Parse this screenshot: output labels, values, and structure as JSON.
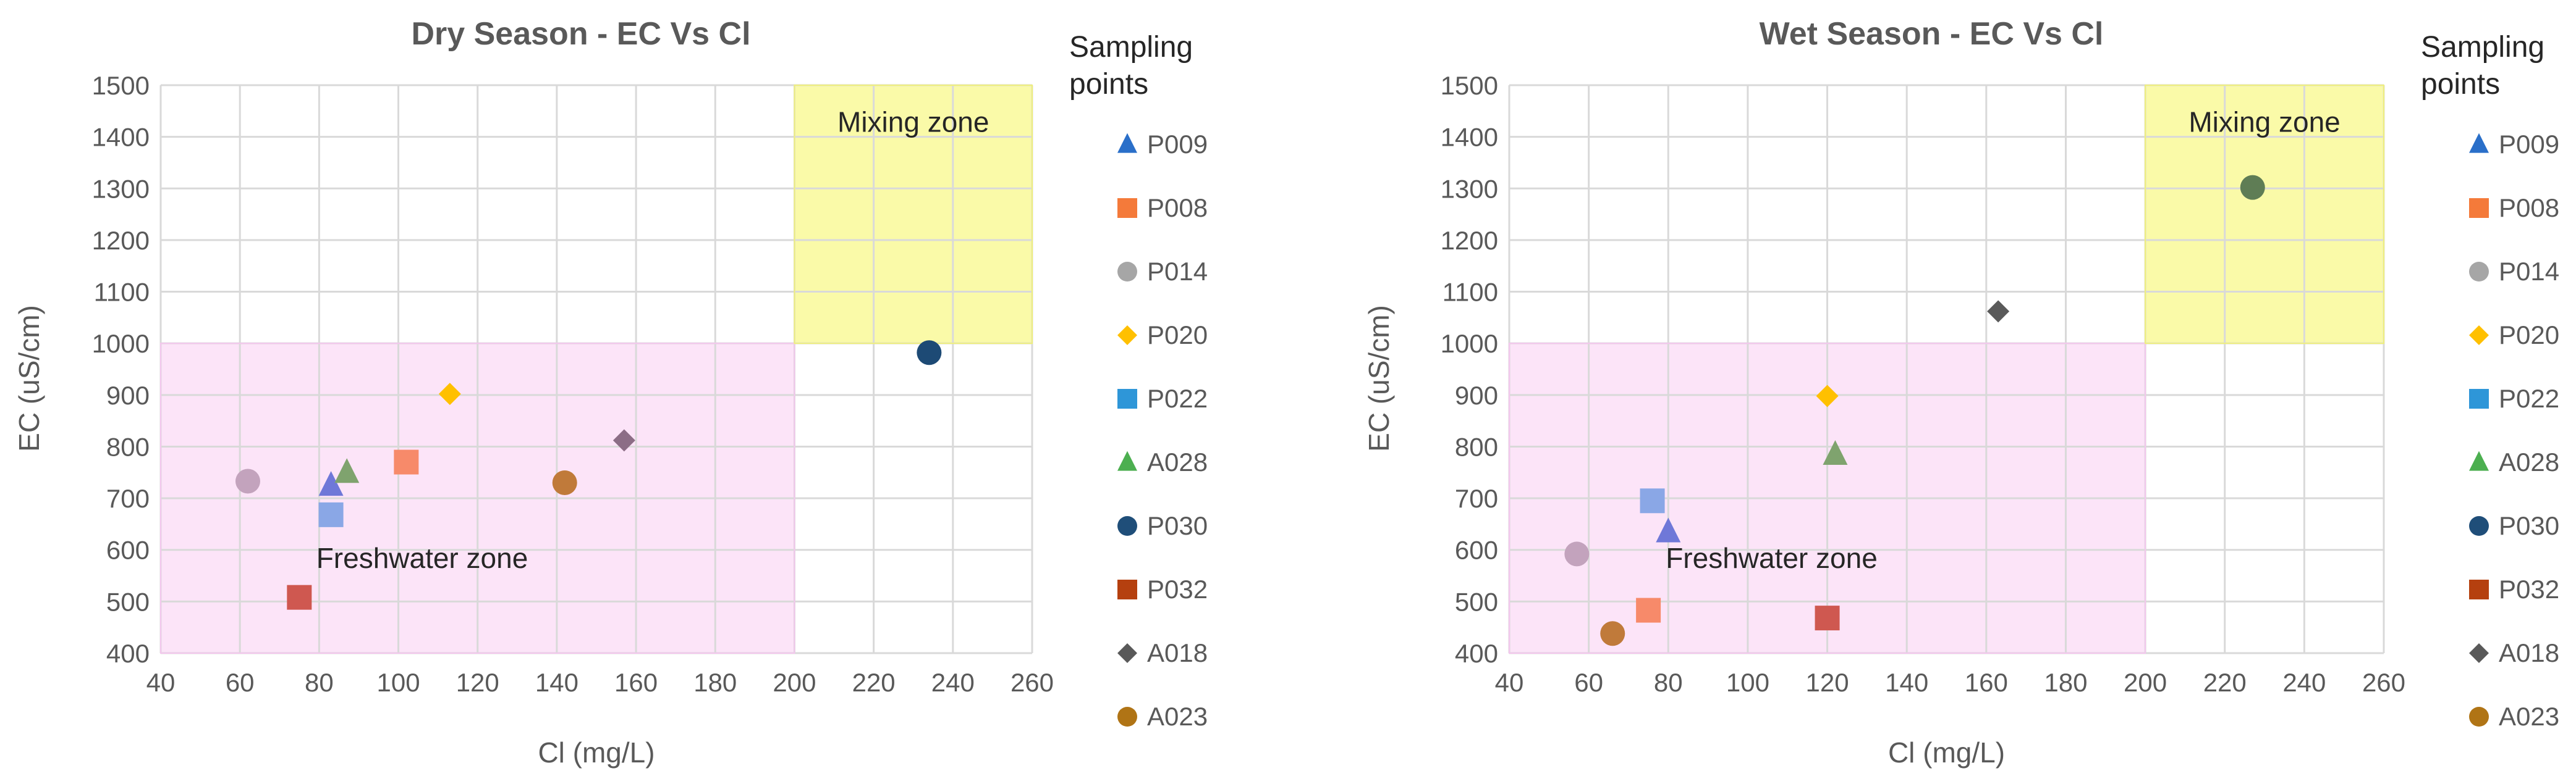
{
  "chart_data": [
    {
      "type": "scatter",
      "title": "Dry Season - EC Vs Cl",
      "xlabel": "Cl (mg/L)",
      "ylabel": "EC (uS/cm)",
      "xlim": [
        40,
        260
      ],
      "ylim": [
        400,
        1500
      ],
      "xticks": [
        40,
        60,
        80,
        100,
        120,
        140,
        160,
        180,
        200,
        220,
        240,
        260
      ],
      "yticks": [
        400,
        500,
        600,
        700,
        800,
        900,
        1000,
        1100,
        1200,
        1300,
        1400,
        1500
      ],
      "zones": [
        {
          "label": "Freshwater zone",
          "x_range": [
            40,
            200
          ],
          "y_range": [
            400,
            1000
          ],
          "color": "#fce4f8"
        },
        {
          "label": "Mixing zone",
          "x_range": [
            200,
            260
          ],
          "y_range": [
            1000,
            1500
          ],
          "color": "#fafaa8"
        }
      ],
      "legend_title": "Sampling points",
      "points": [
        {
          "name": "P009",
          "x": 83,
          "y": 725
        },
        {
          "name": "P008",
          "x": 102,
          "y": 770
        },
        {
          "name": "P014",
          "x": 62,
          "y": 733
        },
        {
          "name": "P020",
          "x": 113,
          "y": 902
        },
        {
          "name": "P022",
          "x": 83,
          "y": 668
        },
        {
          "name": "A028",
          "x": 87,
          "y": 750
        },
        {
          "name": "P030",
          "x": 234,
          "y": 982
        },
        {
          "name": "P032",
          "x": 75,
          "y": 508
        },
        {
          "name": "A018",
          "x": 157,
          "y": 812
        },
        {
          "name": "A023",
          "x": 142,
          "y": 730
        }
      ]
    },
    {
      "type": "scatter",
      "title": "Wet Season - EC Vs Cl",
      "xlabel": "Cl (mg/L)",
      "ylabel": "EC (uS/cm)",
      "xlim": [
        40,
        260
      ],
      "ylim": [
        400,
        1500
      ],
      "xticks": [
        40,
        60,
        80,
        100,
        120,
        140,
        160,
        180,
        200,
        220,
        240,
        260
      ],
      "yticks": [
        400,
        500,
        600,
        700,
        800,
        900,
        1000,
        1100,
        1200,
        1300,
        1400,
        1500
      ],
      "zones": [
        {
          "label": "Freshwater zone",
          "x_range": [
            40,
            200
          ],
          "y_range": [
            400,
            1000
          ],
          "color": "#fce4f8"
        },
        {
          "label": "Mixing zone",
          "x_range": [
            200,
            260
          ],
          "y_range": [
            1000,
            1500
          ],
          "color": "#fafaa8"
        }
      ],
      "legend_title": "Sampling points",
      "points": [
        {
          "name": "P009",
          "x": 80,
          "y": 635
        },
        {
          "name": "P008",
          "x": 75,
          "y": 483
        },
        {
          "name": "P014",
          "x": 57,
          "y": 592
        },
        {
          "name": "P020",
          "x": 120,
          "y": 898
        },
        {
          "name": "P022",
          "x": 76,
          "y": 695
        },
        {
          "name": "A028",
          "x": 122,
          "y": 785
        },
        {
          "name": "P030",
          "x": 227,
          "y": 1302
        },
        {
          "name": "P032",
          "x": 120,
          "y": 468
        },
        {
          "name": "A018",
          "x": 163,
          "y": 1062
        },
        {
          "name": "A023",
          "x": 66,
          "y": 438
        }
      ]
    }
  ],
  "series_styles": [
    {
      "name": "P009",
      "marker": "triangle",
      "legend_color": "#2a6fc9",
      "point_color": "#6f78d8"
    },
    {
      "name": "P008",
      "marker": "square",
      "legend_color": "#f47a3a",
      "point_color": "#f78a6a"
    },
    {
      "name": "P014",
      "marker": "circle",
      "legend_color": "#a6a6a6",
      "point_color": "#c3a3bd"
    },
    {
      "name": "P020",
      "marker": "diamond",
      "legend_color": "#ffc000",
      "point_color": "#ffc000"
    },
    {
      "name": "P022",
      "marker": "square",
      "legend_color": "#2e96d8",
      "point_color": "#8aa7e6"
    },
    {
      "name": "A028",
      "marker": "triangle",
      "legend_color": "#4caf50",
      "point_color": "#7fa36e"
    },
    {
      "name": "P030",
      "marker": "circle",
      "legend_color": "#1f4e79",
      "point_color": "#1d4a75"
    },
    {
      "name": "P032",
      "marker": "square",
      "legend_color": "#b5400f",
      "point_color": "#cf5850"
    },
    {
      "name": "A018",
      "marker": "diamond",
      "legend_color": "#595959",
      "point_color": "#8c6d86"
    },
    {
      "name": "A023",
      "marker": "circle",
      "legend_color": "#b07415",
      "point_color": "#c07a3a"
    }
  ],
  "wet_point_overrides": {
    "P030": "#5f7d55",
    "A018": "#5a5a5a"
  }
}
